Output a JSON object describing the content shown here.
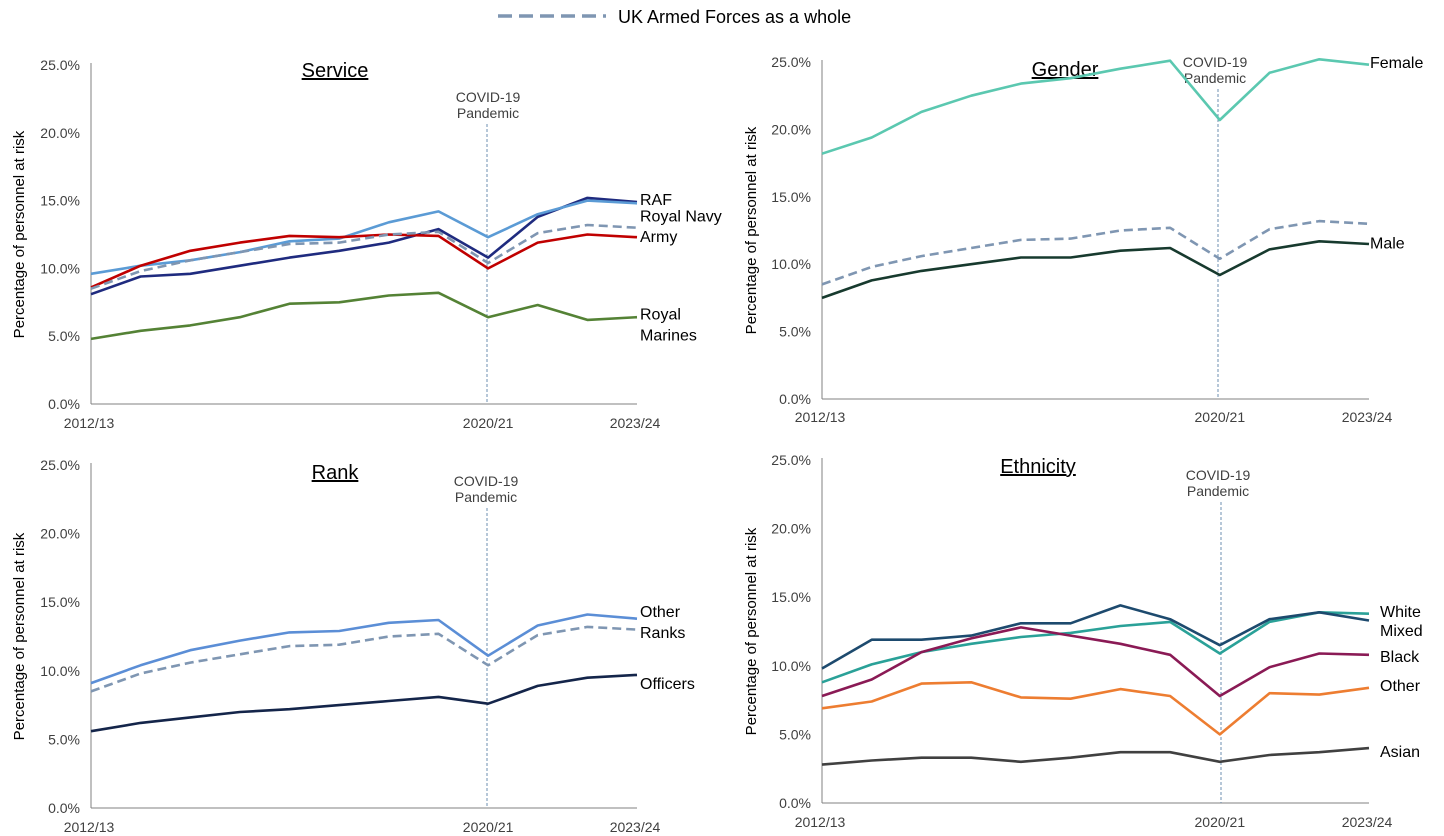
{
  "legend": {
    "label": "UK Armed Forces as a whole",
    "color": "#7f96b2"
  },
  "chart_data": [
    {
      "type": "line",
      "title": "Service",
      "ylabel": "Percentage of personnel at risk",
      "ylim": [
        0,
        25
      ],
      "yticks": [
        "0.0%",
        "5.0%",
        "10.0%",
        "15.0%",
        "20.0%",
        "25.0%"
      ],
      "x_labels": [
        "2012/13",
        "2020/21",
        "2023/24"
      ],
      "x": [
        0,
        1,
        2,
        3,
        4,
        5,
        6,
        7,
        8,
        9,
        10,
        11
      ],
      "annotation": [
        "COVID-19",
        "Pandemic"
      ],
      "series": [
        {
          "name": "RAF",
          "label_lines": [
            "RAF"
          ],
          "color": "#1f2b7f",
          "values": [
            8.1,
            9.4,
            9.6,
            10.2,
            10.8,
            11.3,
            11.9,
            12.9,
            10.8,
            13.8,
            15.2,
            14.9
          ],
          "label_y": 15.1
        },
        {
          "name": "Royal Navy",
          "label_lines": [
            "Royal Navy"
          ],
          "color": "#5b9bd5",
          "values": [
            9.6,
            10.2,
            10.6,
            11.2,
            12.0,
            12.2,
            13.4,
            14.2,
            12.3,
            14.0,
            15.0,
            14.8
          ],
          "label_y": 13.9
        },
        {
          "name": "Army",
          "label_lines": [
            "Army"
          ],
          "color": "#c00000",
          "values": [
            8.6,
            10.2,
            11.3,
            11.9,
            12.4,
            12.3,
            12.5,
            12.4,
            10.0,
            11.9,
            12.5,
            12.3
          ],
          "label_y": 12.4
        },
        {
          "name": "Royal Marines",
          "label_lines": [
            "Royal",
            "Marines"
          ],
          "color": "#548235",
          "values": [
            4.8,
            5.4,
            5.8,
            6.4,
            7.4,
            7.5,
            8.0,
            8.2,
            6.4,
            7.3,
            6.2,
            6.4
          ],
          "label_y": 5.9
        },
        {
          "name": "UK Armed Forces as a whole",
          "color": "#7f96b2",
          "dashed": true,
          "values": [
            8.5,
            9.8,
            10.6,
            11.2,
            11.8,
            11.9,
            12.5,
            12.7,
            10.4,
            12.6,
            13.2,
            13.0
          ]
        }
      ]
    },
    {
      "type": "line",
      "title": "Gender",
      "ylabel": "Percentage of personnel at risk",
      "ylim": [
        0,
        25
      ],
      "yticks": [
        "0.0%",
        "5.0%",
        "10.0%",
        "15.0%",
        "20.0%",
        "25.0%"
      ],
      "x_labels": [
        "2012/13",
        "2020/21",
        "2023/24"
      ],
      "x": [
        0,
        1,
        2,
        3,
        4,
        5,
        6,
        7,
        8,
        9,
        10,
        11
      ],
      "annotation": [
        "COVID-19",
        "Pandemic"
      ],
      "series": [
        {
          "name": "Female",
          "label_lines": [
            "Female"
          ],
          "color": "#5bc8b0",
          "values": [
            18.2,
            19.4,
            21.3,
            22.5,
            23.4,
            23.8,
            24.5,
            25.1,
            20.7,
            24.2,
            25.2,
            24.8
          ],
          "label_y": 25.0
        },
        {
          "name": "UK Armed Forces as a whole",
          "color": "#7f96b2",
          "dashed": true,
          "values": [
            8.5,
            9.8,
            10.6,
            11.2,
            11.8,
            11.9,
            12.5,
            12.7,
            10.4,
            12.6,
            13.2,
            13.0
          ]
        },
        {
          "name": "Male",
          "label_lines": [
            "Male"
          ],
          "color": "#173a2e",
          "values": [
            7.5,
            8.8,
            9.5,
            10.0,
            10.5,
            10.5,
            11.0,
            11.2,
            9.2,
            11.1,
            11.7,
            11.5
          ],
          "label_y": 11.6
        }
      ]
    },
    {
      "type": "line",
      "title": "Rank",
      "ylabel": "Percentage of personnel at risk",
      "ylim": [
        0,
        25
      ],
      "yticks": [
        "0.0%",
        "5.0%",
        "10.0%",
        "15.0%",
        "20.0%",
        "25.0%"
      ],
      "x_labels": [
        "2012/13",
        "2020/21",
        "2023/24"
      ],
      "x": [
        0,
        1,
        2,
        3,
        4,
        5,
        6,
        7,
        8,
        9,
        10,
        11
      ],
      "annotation": [
        "COVID-19",
        "Pandemic"
      ],
      "series": [
        {
          "name": "Other Ranks",
          "label_lines": [
            "Other",
            "Ranks"
          ],
          "color": "#5b8ed6",
          "values": [
            9.1,
            10.4,
            11.5,
            12.2,
            12.8,
            12.9,
            13.5,
            13.7,
            11.1,
            13.3,
            14.1,
            13.8
          ],
          "label_y": 13.6
        },
        {
          "name": "UK Armed Forces as a whole",
          "color": "#7f96b2",
          "dashed": true,
          "values": [
            8.5,
            9.8,
            10.6,
            11.2,
            11.8,
            11.9,
            12.5,
            12.7,
            10.4,
            12.6,
            13.2,
            13.0
          ]
        },
        {
          "name": "Officers",
          "label_lines": [
            "Officers"
          ],
          "color": "#14254a",
          "values": [
            5.6,
            6.2,
            6.6,
            7.0,
            7.2,
            7.5,
            7.8,
            8.1,
            7.6,
            8.9,
            9.5,
            9.7
          ],
          "label_y": 9.1
        }
      ]
    },
    {
      "type": "line",
      "title": "Ethnicity",
      "ylabel": "Percentage of personnel at risk",
      "ylim": [
        0,
        25
      ],
      "yticks": [
        "0.0%",
        "5.0%",
        "10.0%",
        "15.0%",
        "20.0%",
        "25.0%"
      ],
      "x_labels": [
        "2012/13",
        "2020/21",
        "2023/24"
      ],
      "x": [
        0,
        1,
        2,
        3,
        4,
        5,
        6,
        7,
        8,
        9,
        10,
        11
      ],
      "annotation": [
        "COVID-19",
        "Pandemic"
      ],
      "series": [
        {
          "name": "White",
          "label_lines": [
            "White"
          ],
          "color": "#2aa198",
          "values": [
            8.8,
            10.1,
            11.0,
            11.6,
            12.1,
            12.4,
            12.9,
            13.2,
            10.9,
            13.2,
            13.9,
            13.8
          ],
          "label_y": 14.0
        },
        {
          "name": "Mixed",
          "label_lines": [
            "Mixed"
          ],
          "color": "#1d4a6e",
          "values": [
            9.8,
            11.9,
            11.9,
            12.2,
            13.1,
            13.1,
            14.4,
            13.4,
            11.5,
            13.4,
            13.9,
            13.3
          ],
          "label_y": 12.6
        },
        {
          "name": "Black",
          "label_lines": [
            "Black"
          ],
          "color": "#8a1a55",
          "values": [
            7.8,
            9.0,
            11.0,
            12.0,
            12.8,
            12.2,
            11.6,
            10.8,
            7.8,
            9.9,
            10.9,
            10.8
          ],
          "label_y": 10.7
        },
        {
          "name": "Other",
          "label_lines": [
            "Other"
          ],
          "color": "#ed7d31",
          "values": [
            6.9,
            7.4,
            8.7,
            8.8,
            7.7,
            7.6,
            8.3,
            7.8,
            5.0,
            8.0,
            7.9,
            8.4
          ],
          "label_y": 8.6
        },
        {
          "name": "Asian",
          "label_lines": [
            "Asian"
          ],
          "color": "#404040",
          "values": [
            2.8,
            3.1,
            3.3,
            3.3,
            3.0,
            3.3,
            3.7,
            3.7,
            3.0,
            3.5,
            3.7,
            4.0
          ],
          "label_y": 3.8
        }
      ]
    }
  ]
}
